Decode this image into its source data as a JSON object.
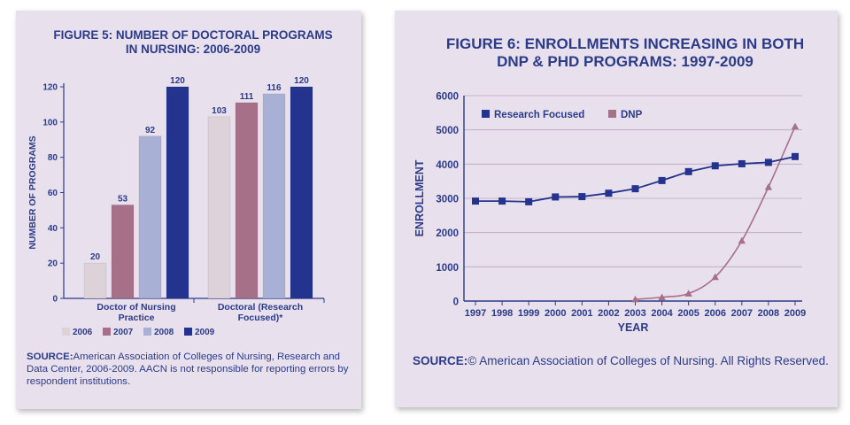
{
  "chart_data": [
    {
      "type": "bar",
      "title": [
        "FIGURE 5:  NUMBER OF DOCTORAL PROGRAMS",
        "IN NURSING: 2006-2009"
      ],
      "ylabel": "NUMBER OF PROGRAMS",
      "xlabel": "",
      "ylim": [
        0,
        120
      ],
      "yticks": [
        "0",
        "20",
        "40",
        "60",
        "80",
        "100",
        "120"
      ],
      "categories": [
        [
          "Doctor of Nursing",
          "Practice"
        ],
        [
          "Doctoral (Research",
          "Focused)*"
        ]
      ],
      "series": [
        {
          "name": "2006",
          "color": "#dcd2d8",
          "values": [
            20,
            103
          ]
        },
        {
          "name": "2007",
          "color": "#a67089",
          "values": [
            53,
            111
          ]
        },
        {
          "name": "2008",
          "color": "#a9b0d6",
          "values": [
            92,
            116
          ]
        },
        {
          "name": "2009",
          "color": "#24338d",
          "values": [
            120,
            120
          ]
        }
      ],
      "legend": "bottom",
      "source_label": "SOURCE:",
      "source_text": "American Association of Colleges of Nursing, Research and Data Center, 2006-2009. AACN is not responsible for reporting errors by respondent institutions."
    },
    {
      "type": "line",
      "title": [
        "FIGURE 6:  ENROLLMENTS INCREASING IN BOTH",
        "DNP & PHD PROGRAMS: 1997-2009"
      ],
      "ylabel": "ENROLLMENT",
      "xlabel": "YEAR",
      "ylim": [
        0,
        6000
      ],
      "yticks": [
        "0",
        "1000",
        "2000",
        "3000",
        "4000",
        "5000",
        "6000"
      ],
      "x": [
        "1997",
        "1998",
        "1999",
        "2000",
        "2001",
        "2002",
        "2003",
        "2004",
        "2005",
        "2006",
        "2007",
        "2008",
        "2009"
      ],
      "series": [
        {
          "name": "Research Focused",
          "color": "#24338d",
          "marker": "square",
          "values": [
            2920,
            2920,
            2900,
            3040,
            3050,
            3150,
            3280,
            3520,
            3780,
            3950,
            4010,
            4050,
            4220
          ]
        },
        {
          "name": "DNP",
          "color": "#a67089",
          "marker": "triangle",
          "values": [
            null,
            null,
            null,
            null,
            null,
            null,
            50,
            110,
            220,
            700,
            1760,
            3330,
            5100
          ]
        }
      ],
      "legend": "top-left",
      "source_label": "SOURCE:",
      "source_text": "© American Association of Colleges of Nursing. All Rights Reserved."
    }
  ]
}
